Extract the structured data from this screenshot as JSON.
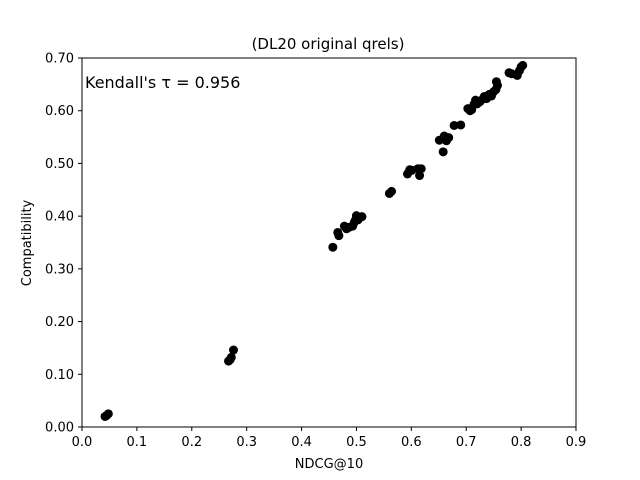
{
  "chart_data": {
    "type": "scatter",
    "title": "(DL20 original qrels)",
    "xlabel": "NDCG@10",
    "ylabel": "Compatibility",
    "xlim": [
      0.0,
      0.9
    ],
    "ylim": [
      0.0,
      0.7
    ],
    "xticks": [
      "0.0",
      "0.1",
      "0.2",
      "0.3",
      "0.4",
      "0.5",
      "0.6",
      "0.7",
      "0.8",
      "0.9"
    ],
    "yticks": [
      "0.00",
      "0.10",
      "0.20",
      "0.30",
      "0.40",
      "0.50",
      "0.60",
      "0.70"
    ],
    "grid": false,
    "marker_color": "#000000",
    "annotation": "Kendall's τ = 0.956",
    "series": [
      {
        "points": [
          [
            0.042,
            0.02
          ],
          [
            0.045,
            0.022
          ],
          [
            0.048,
            0.025
          ],
          [
            0.267,
            0.125
          ],
          [
            0.27,
            0.128
          ],
          [
            0.272,
            0.132
          ],
          [
            0.276,
            0.146
          ],
          [
            0.457,
            0.341
          ],
          [
            0.466,
            0.369
          ],
          [
            0.468,
            0.363
          ],
          [
            0.478,
            0.381
          ],
          [
            0.482,
            0.376
          ],
          [
            0.487,
            0.379
          ],
          [
            0.493,
            0.381
          ],
          [
            0.496,
            0.388
          ],
          [
            0.498,
            0.392
          ],
          [
            0.5,
            0.401
          ],
          [
            0.503,
            0.393
          ],
          [
            0.51,
            0.399
          ],
          [
            0.56,
            0.443
          ],
          [
            0.564,
            0.447
          ],
          [
            0.593,
            0.48
          ],
          [
            0.597,
            0.488
          ],
          [
            0.601,
            0.487
          ],
          [
            0.612,
            0.49
          ],
          [
            0.615,
            0.477
          ],
          [
            0.618,
            0.49
          ],
          [
            0.651,
            0.544
          ],
          [
            0.658,
            0.522
          ],
          [
            0.66,
            0.552
          ],
          [
            0.664,
            0.543
          ],
          [
            0.668,
            0.549
          ],
          [
            0.678,
            0.572
          ],
          [
            0.69,
            0.573
          ],
          [
            0.703,
            0.604
          ],
          [
            0.707,
            0.6
          ],
          [
            0.71,
            0.602
          ],
          [
            0.714,
            0.612
          ],
          [
            0.717,
            0.62
          ],
          [
            0.72,
            0.613
          ],
          [
            0.725,
            0.617
          ],
          [
            0.73,
            0.622
          ],
          [
            0.733,
            0.627
          ],
          [
            0.737,
            0.623
          ],
          [
            0.742,
            0.631
          ],
          [
            0.746,
            0.628
          ],
          [
            0.75,
            0.636
          ],
          [
            0.754,
            0.64
          ],
          [
            0.755,
            0.655
          ],
          [
            0.757,
            0.648
          ],
          [
            0.778,
            0.672
          ],
          [
            0.783,
            0.67
          ],
          [
            0.793,
            0.667
          ],
          [
            0.797,
            0.676
          ],
          [
            0.8,
            0.683
          ],
          [
            0.803,
            0.686
          ]
        ]
      }
    ]
  }
}
